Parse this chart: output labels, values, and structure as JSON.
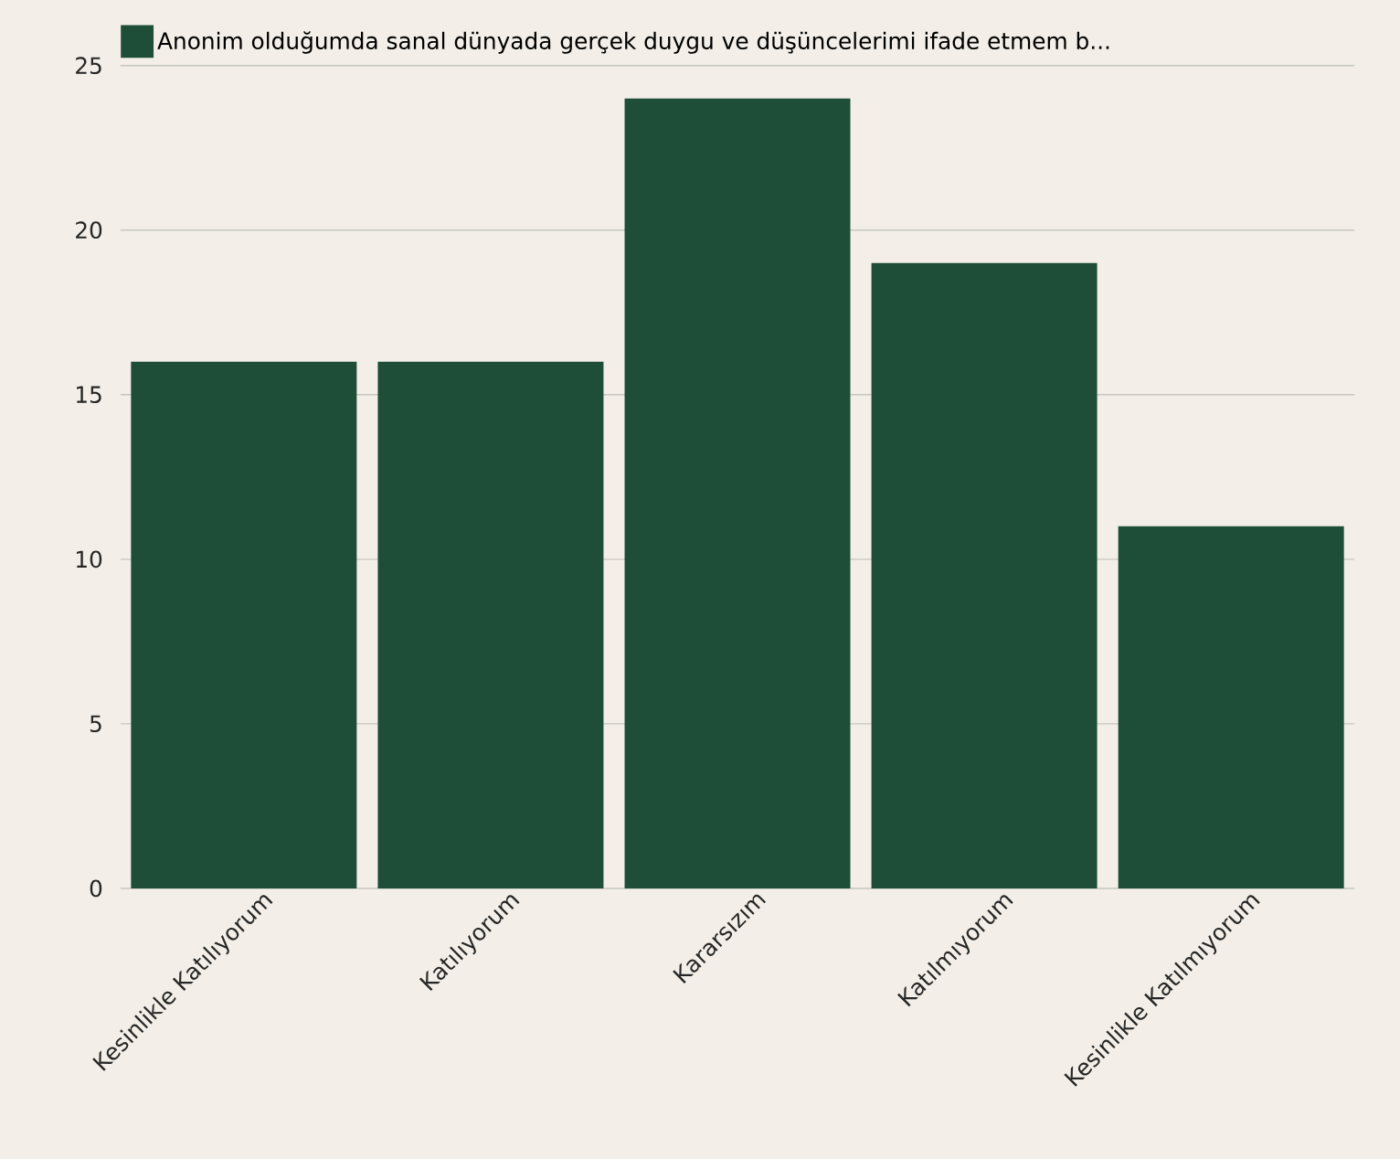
{
  "chart_data": {
    "type": "bar",
    "categories": [
      "Kesinlikle Katılıyorum",
      "Katılıyorum",
      "Kararsızım",
      "Katılmıyorum",
      "Kesinlikle Katılmıyorum"
    ],
    "series": [
      {
        "name": "Anonim olduğumda sanal dünyada gerçek duygu ve düşüncelerimi ifade etmem b...",
        "color": "#1e4d38",
        "values": [
          16,
          16,
          24,
          19,
          11
        ]
      }
    ],
    "ylim": [
      0,
      25
    ],
    "yticks": [
      0,
      5,
      10,
      15,
      20,
      25
    ],
    "grid": "y",
    "legend": "top left"
  }
}
